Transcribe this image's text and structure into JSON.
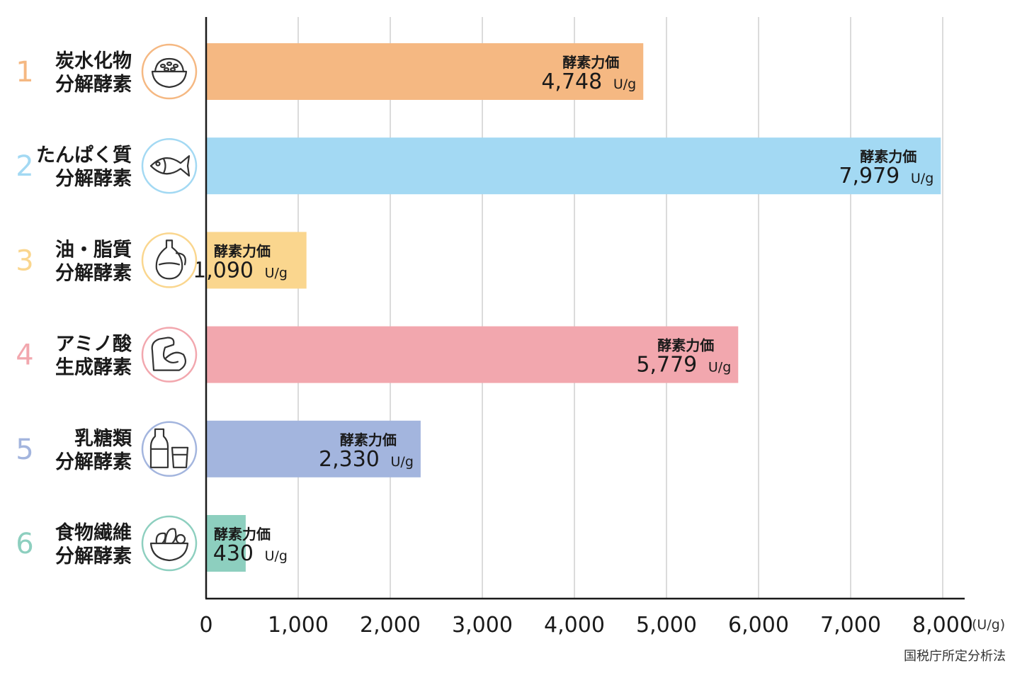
{
  "chart_data": {
    "type": "bar",
    "orientation": "horizontal",
    "categories": [
      {
        "rank": "1",
        "line1": "炭水化物",
        "line2": "分解酵素",
        "color": "#F5B882",
        "icon": "rice-bowl-icon"
      },
      {
        "rank": "2",
        "line1": "たんぱく質",
        "line2": "分解酵素",
        "color": "#A3D9F3",
        "icon": "fish-icon"
      },
      {
        "rank": "3",
        "line1": "油・脂質",
        "line2": "分解酵素",
        "color": "#FAD68E",
        "icon": "oil-bottle-icon"
      },
      {
        "rank": "4",
        "line1": "アミノ酸",
        "line2": "生成酵素",
        "color": "#F2A7AE",
        "icon": "muscle-arm-icon"
      },
      {
        "rank": "5",
        "line1": "乳糖類",
        "line2": "分解酵素",
        "color": "#A3B5DE",
        "icon": "milk-bottle-icon"
      },
      {
        "rank": "6",
        "line1": "食物繊維",
        "line2": "分解酵素",
        "color": "#8DCFBF",
        "icon": "salad-bowl-icon"
      }
    ],
    "values": [
      4748,
      7979,
      1090,
      5779,
      2330,
      430
    ],
    "value_labels": [
      "4,748",
      "7,979",
      "1,090",
      "5,779",
      "2,330",
      "430"
    ],
    "bar_label_title": "酵素力価",
    "bar_label_unit": "U/g",
    "xlim": [
      0,
      8000
    ],
    "xticks": [
      0,
      1000,
      2000,
      3000,
      4000,
      5000,
      6000,
      7000,
      8000
    ],
    "xtick_labels": [
      "0",
      "1,000",
      "2,000",
      "3,000",
      "4,000",
      "5,000",
      "6,000",
      "7,000",
      "8,000"
    ],
    "x_unit": "(U/g)",
    "grid": "vertical",
    "source_note": "国税庁所定分析法"
  }
}
